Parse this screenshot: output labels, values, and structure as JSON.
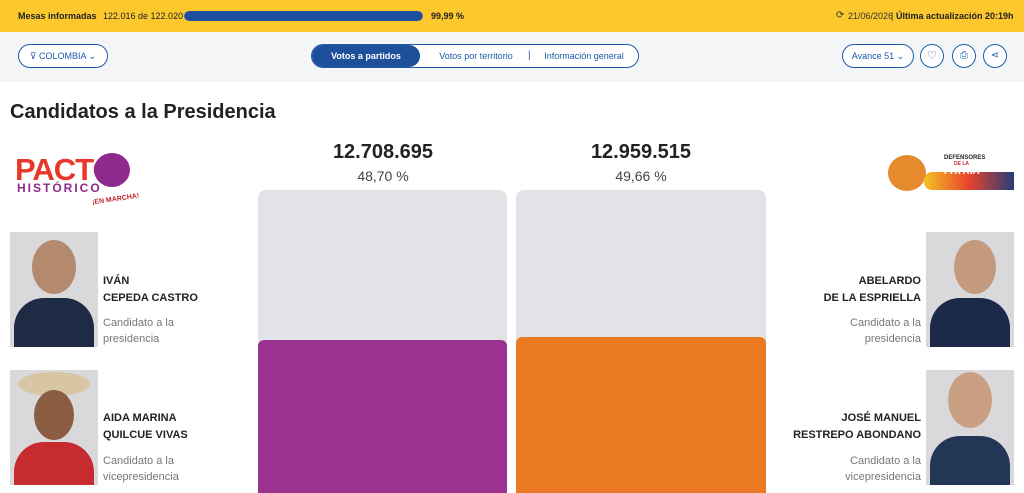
{
  "header": {
    "mesas_label": "Mesas informadas",
    "mesas_count": "122.016 de 122.020",
    "progress": {
      "value": 99.99,
      "label": "99,99 %"
    },
    "date": "21/06/2026",
    "update": "Última actualización 20:19h"
  },
  "toolbar": {
    "filter": "COLOMBIA",
    "tabs": [
      "Votos a partidos",
      "Votos por territorio",
      "Información general"
    ],
    "advance": "Avance 51"
  },
  "section_title": "Candidatos a la Presidencia",
  "left": {
    "logo": [
      "PACTO",
      "HISTÓRICO",
      "¡EN MARCHA!"
    ],
    "votes": "12.708.695",
    "percent": {
      "value": 48.7,
      "label": "48,70 %"
    },
    "candidates": [
      {
        "name": [
          "IVÁN",
          "CEPEDA CASTRO"
        ],
        "role": [
          "Candidato a la",
          "presidencia"
        ]
      },
      {
        "name": [
          "AIDA MARINA",
          "QUILCUE VIVAS"
        ],
        "role": [
          "Candidato a la",
          "vicepresidencia"
        ]
      }
    ]
  },
  "right": {
    "logo": [
      "DEFENSORES",
      "DE LA",
      "PATRIA"
    ],
    "votes": "12.959.515",
    "percent": {
      "value": 49.66,
      "label": "49,66 %"
    },
    "candidates": [
      {
        "name": [
          "ABELARDO",
          "DE LA ESPRIELLA"
        ],
        "role": [
          "Candidato a la",
          "presidencia"
        ]
      },
      {
        "name": [
          "JOSÉ MANUEL",
          "RESTREPO ABONDANO"
        ],
        "role": [
          "Candidato a la",
          "vicepresidencia"
        ]
      }
    ]
  }
}
